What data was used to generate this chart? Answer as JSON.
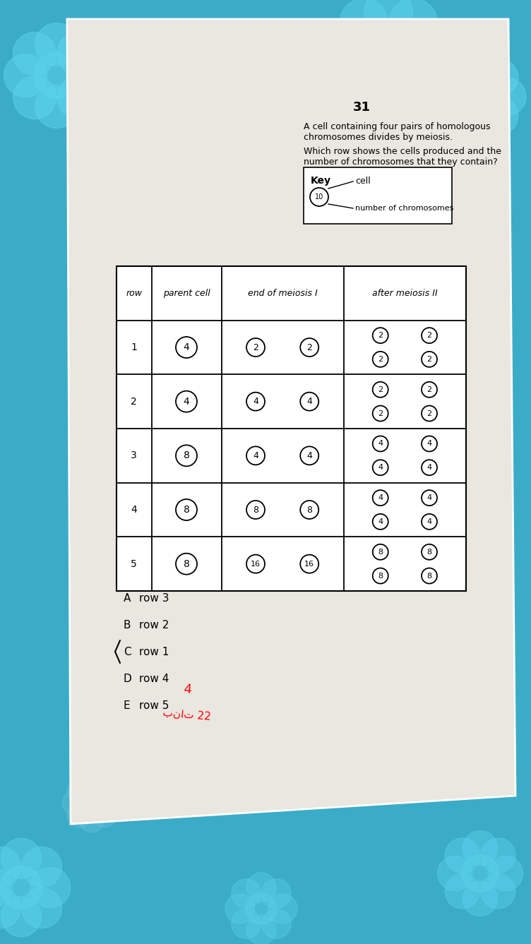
{
  "question_num": "31",
  "question_text_line1": "A cell containing four pairs of homologous chromosomes divides by meiosis.",
  "sub_question": "Which row shows the cells produced and the number of chromosomes that they contain?",
  "key_label": "Key",
  "key_cell": "cell",
  "key_num": "number of chromosomes",
  "col_headers": [
    "row",
    "parent cell",
    "end of meiosis I",
    "after meiosis II"
  ],
  "rows": [
    {
      "row": "1",
      "parent": "4",
      "meiosis1": [
        "2",
        "2"
      ],
      "meiosis2": [
        "2",
        "2",
        "2",
        "2"
      ]
    },
    {
      "row": "2",
      "parent": "4",
      "meiosis1": [
        "4",
        "4"
      ],
      "meiosis2": [
        "2",
        "2",
        "2",
        "2"
      ]
    },
    {
      "row": "3",
      "parent": "8",
      "meiosis1": [
        "4",
        "4"
      ],
      "meiosis2": [
        "4",
        "4",
        "4",
        "4"
      ]
    },
    {
      "row": "4",
      "parent": "8",
      "meiosis1": [
        "8",
        "8"
      ],
      "meiosis2": [
        "4",
        "4",
        "4",
        "4"
      ]
    },
    {
      "row": "5",
      "parent": "8",
      "meiosis1": [
        "16",
        "16"
      ],
      "meiosis2": [
        "8",
        "8",
        "8",
        "8"
      ]
    }
  ],
  "answer_choices": [
    {
      "letter": "A",
      "text": "row 3"
    },
    {
      "letter": "B",
      "text": "row 2"
    },
    {
      "letter": "C",
      "text": "row 1"
    },
    {
      "letter": "D",
      "text": "row 4"
    },
    {
      "letter": "E",
      "text": "row 5"
    }
  ],
  "bg_color": "#3BACC8",
  "paper_color": "#EAE6E0",
  "answer_color": "#FF0000",
  "handwritten1": "4",
  "handwritten2": "بنات 22"
}
